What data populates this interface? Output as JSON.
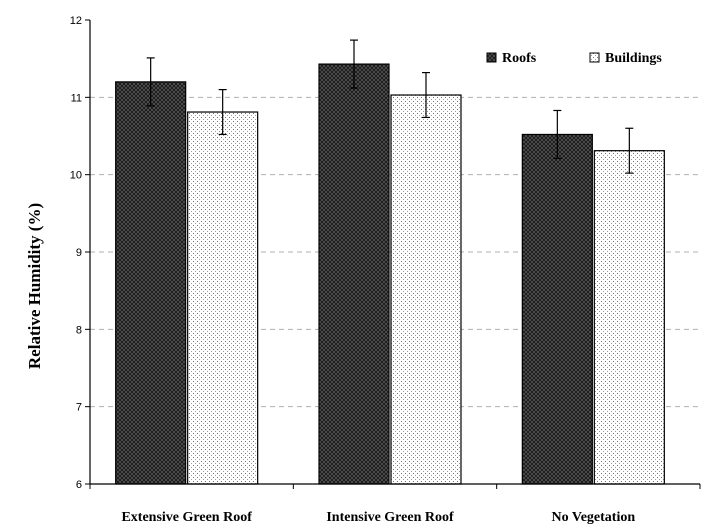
{
  "chart_data": {
    "type": "bar",
    "title": "",
    "xlabel": "",
    "ylabel": "Relative Humidity (%)",
    "ylim": [
      6,
      12
    ],
    "yticks": [
      6,
      7,
      8,
      9,
      10,
      11,
      12
    ],
    "grid": "horizontal dashed",
    "legend_position": "top-right",
    "categories": [
      "Extensive Green Roof",
      "Intensive Green Roof",
      "No Vegetation"
    ],
    "series": [
      {
        "name": "Roofs",
        "pattern": "crosshatch-dark",
        "color": "#3a3a3a",
        "values": [
          11.2,
          11.43,
          10.52
        ],
        "errors": [
          0.31,
          0.31,
          0.31
        ]
      },
      {
        "name": "Buildings",
        "pattern": "dots-light",
        "color": "#f4f4f4",
        "values": [
          10.81,
          11.03,
          10.31
        ],
        "errors": [
          0.29,
          0.29,
          0.29
        ]
      }
    ]
  }
}
